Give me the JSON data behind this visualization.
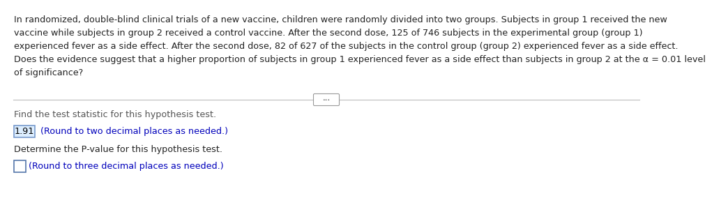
{
  "background_color": "#ffffff",
  "paragraph_lines": [
    "In randomized, double-blind clinical trials of a new vaccine, children were randomly divided into two groups. Subjects in group 1 received the new",
    "vaccine while subjects in group 2 received a control vaccine. After the second dose, 125 of 746 subjects in the experimental group (group 1)",
    "experienced fever as a side effect. After the second dose, 82 of 627 of the subjects in the control group (group 2) experienced fever as a side effect.",
    "Does the evidence suggest that a higher proportion of subjects in group 1 experienced fever as a side effect than subjects in group 2 at the α = 0.01 level",
    "of significance?"
  ],
  "find_text": "Find the test statistic for this hypothesis test.",
  "answer_value": "1.91",
  "answer_hint": " (Round to two decimal places as needed.)",
  "answer_hint_color": "#0000bb",
  "determine_text": "Determine the P-value for this hypothesis test.",
  "pvalue_hint": "(Round to three decimal places as needed.)",
  "pvalue_hint_color": "#0000bb",
  "answer_box_fill": "#ddeeff",
  "answer_box_edge": "#7799cc",
  "pvalue_box_fill": "#ffffff",
  "pvalue_box_edge": "#5577aa",
  "font_size_para": 9.2,
  "font_size_body": 9.2,
  "divider_color": "#bbbbbb",
  "dots_box_edge": "#999999",
  "text_color": "#222222",
  "find_text_color": "#555555"
}
